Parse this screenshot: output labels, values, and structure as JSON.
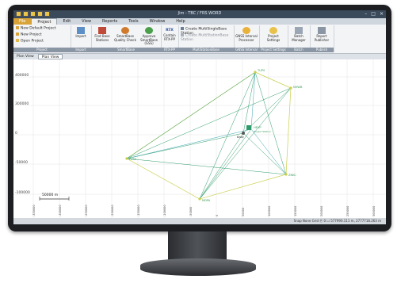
{
  "window": {
    "title": "Jim - TBC / FRS WORD"
  },
  "menu_tabs": [
    "File",
    "Project",
    "Edit",
    "View",
    "Reports",
    "Tools",
    "Window",
    "Help"
  ],
  "ribbon": {
    "project_group": {
      "items": [
        "New Default Project",
        "New Project",
        "Open Project"
      ],
      "label": "Project"
    },
    "import": {
      "label": "Import",
      "group": "Import"
    },
    "base_stations": {
      "label": "Find Base Stations"
    },
    "quality_check": {
      "label": "SmartBase Quality Check"
    },
    "smartbase_gnss": {
      "label": "Approve SmartBase (GSS)"
    },
    "smartbase_group": "SmartBase",
    "rtx": {
      "label": "Contain RTX-PP",
      "icon_text": "RTX"
    },
    "rtx_group": "RTX-PP",
    "multistation": {
      "items": [
        "Create MultiSingleBase Station",
        "Create MultiStationBase Station"
      ],
      "group": "MultiStationBase"
    },
    "gnss_interval": {
      "label": "GNSS Interval Processor",
      "group": "GNSS Interval"
    },
    "project_settings": {
      "label": "Project Settings",
      "group": "Project Settings"
    },
    "batch_manager": {
      "label": "Batch Manager",
      "group": "Batch"
    },
    "publisher": {
      "label": "Report Publisher",
      "group": "Publish"
    }
  },
  "doc_tabs": [
    "Plan View",
    "Plan View"
  ],
  "plot": {
    "y_labels": [
      "400000",
      "300000",
      "0",
      "-50000",
      "-100000"
    ],
    "x_labels": [
      "-350000",
      "-300000",
      "-250000",
      "-200000",
      "-150000",
      "-100000",
      "-50000",
      "0",
      "50000",
      "100000",
      "150000",
      "200000",
      "250000",
      "300000"
    ],
    "scale_bar": "50000 m",
    "stations": [
      {
        "label": "TUPS"
      },
      {
        "label": "NHWB"
      },
      {
        "label": "P483"
      },
      {
        "label": "MDPA"
      },
      {
        "label": "ZNKC"
      },
      {
        "label": "HEVP"
      },
      {
        "label": "Base"
      },
      {
        "label": "Project Station"
      }
    ]
  },
  "status": {
    "left": "",
    "right": "Snap  None  Grid  Ⓟ 0  ☐  577990.111 m, 2777718.263 m"
  },
  "colors": {
    "green_line": "#2e9c6a",
    "yellow_line": "#c9cf4a",
    "teal_line": "#3aa7b0",
    "file_tab": "#d8a43a"
  }
}
